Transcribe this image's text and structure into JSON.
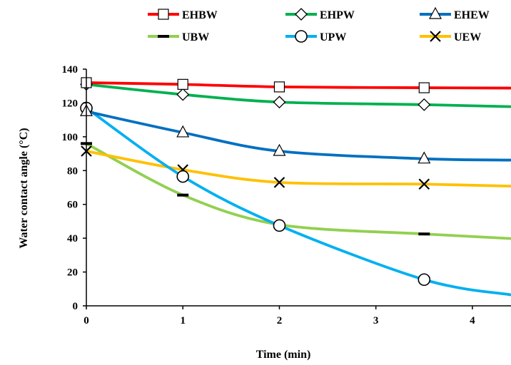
{
  "chart_data": {
    "type": "line",
    "xlabel": "Time (min)",
    "ylabel": "Water contact angle (°C)",
    "xlim": [
      0,
      4.4
    ],
    "ylim": [
      0,
      140
    ],
    "xticks": [
      "0",
      "1",
      "2",
      "3",
      "4"
    ],
    "yticks": [
      "0",
      "20",
      "40",
      "60",
      "80",
      "100",
      "120",
      "140"
    ],
    "grid": false,
    "legend_position": "top",
    "series": [
      {
        "name": "EHBW",
        "color": "#ff0000",
        "marker": "square",
        "x": [
          0,
          1,
          2,
          3.5
        ],
        "y": [
          132,
          131,
          129.5,
          129
        ],
        "curve": [
          [
            0,
            132
          ],
          [
            1,
            131
          ],
          [
            2,
            129.5
          ],
          [
            3.5,
            129
          ],
          [
            4.4,
            128.8
          ]
        ]
      },
      {
        "name": "EHPW",
        "color": "#00b050",
        "marker": "diamond",
        "x": [
          0,
          1,
          2,
          3.5
        ],
        "y": [
          131,
          125,
          120.5,
          119
        ],
        "curve": [
          [
            0,
            131
          ],
          [
            1,
            125
          ],
          [
            2,
            120.5
          ],
          [
            3.5,
            119
          ],
          [
            4.4,
            117.8
          ]
        ]
      },
      {
        "name": "EHEW",
        "color": "#0070c0",
        "marker": "triangle",
        "x": [
          0,
          1,
          2,
          3.5
        ],
        "y": [
          115,
          102.5,
          91.5,
          87
        ],
        "curve": [
          [
            0,
            115
          ],
          [
            1,
            102.5
          ],
          [
            2,
            91.5
          ],
          [
            3.5,
            87
          ],
          [
            4.4,
            86.2
          ]
        ]
      },
      {
        "name": "UBW",
        "color": "#92d050",
        "marker": "dash",
        "x": [
          0,
          1,
          2,
          3.5
        ],
        "y": [
          96,
          65.5,
          48,
          42.5
        ],
        "curve": [
          [
            0,
            96
          ],
          [
            1,
            65.5
          ],
          [
            2,
            48
          ],
          [
            3.5,
            42.5
          ],
          [
            4.4,
            39.8
          ]
        ]
      },
      {
        "name": "UPW",
        "color": "#00b0f0",
        "marker": "circle",
        "x": [
          0,
          1,
          2,
          3.5
        ],
        "y": [
          117,
          76.5,
          47.5,
          15.5
        ],
        "curve": [
          [
            0,
            117
          ],
          [
            1,
            76.5
          ],
          [
            2,
            47.5
          ],
          [
            3.5,
            15.5
          ],
          [
            4.4,
            6.5
          ]
        ]
      },
      {
        "name": "UEW",
        "color": "#ffc000",
        "marker": "x",
        "x": [
          0,
          1,
          2,
          3.5
        ],
        "y": [
          91.5,
          80.5,
          73,
          72
        ],
        "curve": [
          [
            0,
            91.5
          ],
          [
            1,
            80.5
          ],
          [
            2,
            73
          ],
          [
            3.5,
            72
          ],
          [
            4.4,
            70.8
          ]
        ]
      }
    ]
  }
}
